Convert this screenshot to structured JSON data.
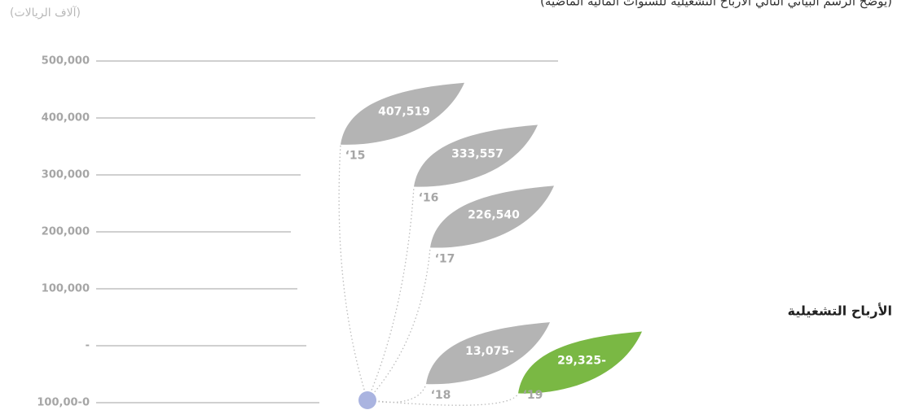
{
  "chart_data": {
    "type": "leaf",
    "title": "(يوضح الرسم البياني التالي الأرباح التشغيلية للسنوات المالية الماضية)",
    "unit_label": "(آلاف الريالات)",
    "series_label": "الأرباح التشغيلية",
    "categories": [
      "‘15",
      "‘16",
      "‘17",
      "‘18",
      "‘19"
    ],
    "values": [
      407519,
      333557,
      226540,
      -13075,
      -29325
    ],
    "value_labels": [
      "407,519",
      "333,557",
      "226,540",
      "13,075-",
      "29,325-"
    ],
    "colors": [
      "#b4b4b4",
      "#b4b4b4",
      "#b4b4b4",
      "#b4b4b4",
      "#7ab844"
    ],
    "ylim": [
      -100000,
      500000
    ],
    "yticks": [
      {
        "value": 500000,
        "label": "500,000"
      },
      {
        "value": 400000,
        "label": "400,000"
      },
      {
        "value": 300000,
        "label": "300,000"
      },
      {
        "value": 200000,
        "label": "200,000"
      },
      {
        "value": 100000,
        "label": "100,000"
      },
      {
        "value": 0,
        "label": "-"
      },
      {
        "value": -100000,
        "label": "100,00-0"
      }
    ],
    "grid": true
  }
}
